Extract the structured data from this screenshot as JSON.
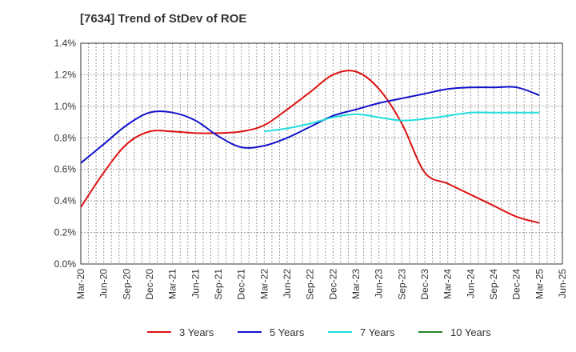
{
  "chart_data": {
    "type": "line",
    "title": "[7634]  Trend of StDev of ROE",
    "xlabel": "",
    "ylabel": "",
    "ylim": [
      0,
      1.4
    ],
    "y_ticks": [
      "0.0%",
      "0.2%",
      "0.4%",
      "0.6%",
      "0.8%",
      "1.0%",
      "1.2%",
      "1.4%"
    ],
    "x_ticks": [
      "Mar-20",
      "Jun-20",
      "Sep-20",
      "Dec-20",
      "Mar-21",
      "Jun-21",
      "Sep-21",
      "Dec-21",
      "Mar-22",
      "Jun-22",
      "Sep-22",
      "Dec-22",
      "Mar-23",
      "Jun-23",
      "Sep-23",
      "Dec-23",
      "Mar-24",
      "Jun-24",
      "Sep-24",
      "Dec-24",
      "Mar-25",
      "Jun-25"
    ],
    "grid": true,
    "legend_position": "bottom",
    "series": [
      {
        "name": "3 Years",
        "color": "#dd1111",
        "values": [
          0.36,
          0.58,
          0.76,
          0.84,
          0.84,
          0.83,
          0.83,
          0.84,
          0.88,
          0.98,
          1.09,
          1.2,
          1.22,
          1.11,
          0.89,
          0.58,
          0.51,
          0.44,
          0.37,
          0.3,
          0.26,
          null
        ]
      },
      {
        "name": "5 Years",
        "color": "#1111cc",
        "values": [
          0.64,
          0.76,
          0.88,
          0.96,
          0.96,
          0.91,
          0.81,
          0.74,
          0.75,
          0.8,
          0.87,
          0.94,
          0.98,
          1.02,
          1.05,
          1.08,
          1.11,
          1.12,
          1.12,
          1.12,
          1.07,
          null
        ]
      },
      {
        "name": "7 Years",
        "color": "#22dddd",
        "values": [
          null,
          null,
          null,
          null,
          null,
          null,
          null,
          null,
          0.84,
          0.86,
          0.89,
          0.93,
          0.95,
          0.93,
          0.91,
          0.92,
          0.94,
          0.96,
          0.96,
          0.96,
          0.96,
          null
        ]
      },
      {
        "name": "10 Years",
        "color": "#228822",
        "values": [
          null,
          null,
          null,
          null,
          null,
          null,
          null,
          null,
          null,
          null,
          null,
          null,
          null,
          null,
          null,
          null,
          null,
          null,
          null,
          null,
          null,
          null
        ]
      }
    ]
  }
}
